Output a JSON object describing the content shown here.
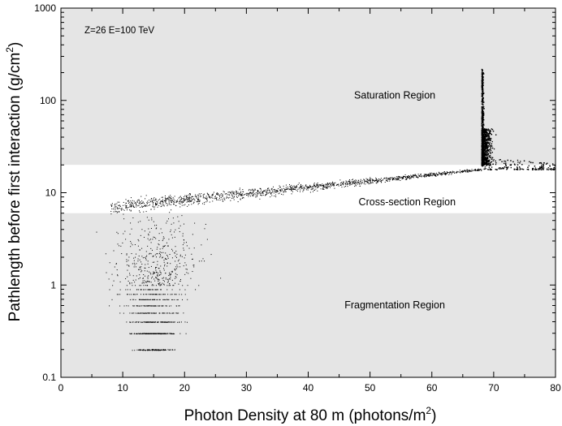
{
  "chart_data": {
    "type": "scatter",
    "title": "",
    "annotation": "Z=26 E=100 TeV",
    "xlabel_main": "Photon Density at 80 m (photons/m",
    "xlabel_sup": "2",
    "xlabel_tail": ")",
    "ylabel_main": "Pathlength before first interaction (g/cm",
    "ylabel_sup": "2",
    "ylabel_tail": ")",
    "xlim": [
      0,
      80
    ],
    "ylim": [
      0.1,
      1000
    ],
    "y_scale": "log",
    "grid": false,
    "x_ticks": [
      "0",
      "10",
      "20",
      "30",
      "40",
      "50",
      "60",
      "70",
      "80"
    ],
    "y_ticks": [
      "0.1",
      "1",
      "10",
      "100",
      "1000"
    ],
    "regions": [
      {
        "label": "Saturation Region",
        "y_range": [
          20,
          1000
        ],
        "label_x": 54,
        "label_y": 105,
        "color": "#e5e5e5"
      },
      {
        "label": "Cross-section Region",
        "y_range": [
          6,
          20
        ],
        "label_x": 56,
        "label_y": 7.3,
        "color": "#ffffff"
      },
      {
        "label": "Fragmentation Region",
        "y_range": [
          0.1,
          6
        ],
        "label_x": 54,
        "label_y": 0.56,
        "color": "#e5e5e5"
      }
    ],
    "point_color": "#000000",
    "series": [
      {
        "point_groups": [
          {
            "description_x": [
              5,
              34
            ],
            "description_y": [
              0.2,
              6
            ],
            "count": 1100,
            "shape": "fragmentation"
          },
          {
            "description_x": [
              8,
              68
            ],
            "description_y": [
              6,
              20
            ],
            "count": 1400,
            "shape": "crossover"
          },
          {
            "description_x": [
              67.5,
              80
            ],
            "description_y": [
              18,
              220
            ],
            "count": 2200,
            "shape": "saturation"
          }
        ]
      }
    ]
  }
}
